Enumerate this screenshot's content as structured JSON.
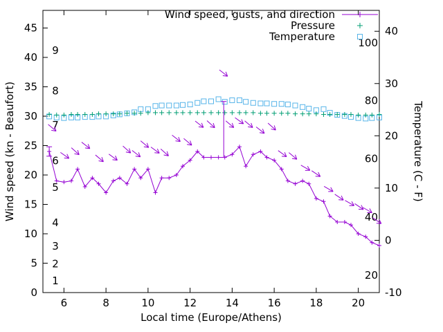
{
  "chart_data": {
    "type": "line",
    "title": "",
    "x_label": "Local time (Europe/Athens)",
    "x_axis": {
      "min": 5,
      "max": 21,
      "ticks": [
        6,
        8,
        10,
        12,
        14,
        16,
        18,
        20
      ]
    },
    "y_left": {
      "label": "Wind speed (kn - Beaufort)",
      "min": 0,
      "max": 48,
      "ticks": [
        0,
        5,
        10,
        15,
        20,
        25,
        30,
        35,
        40,
        45
      ],
      "beaufort_labels": [
        {
          "label": "1",
          "kn": 2.0
        },
        {
          "label": "2",
          "kn": 4.9
        },
        {
          "label": "3",
          "kn": 7.9
        },
        {
          "label": "4",
          "kn": 11.9
        },
        {
          "label": "5",
          "kn": 17.9
        },
        {
          "label": "6",
          "kn": 22.4
        },
        {
          "label": "7",
          "kn": 28.5
        },
        {
          "label": "8",
          "kn": 34.3
        },
        {
          "label": "9",
          "kn": 41.2
        }
      ]
    },
    "y_right": {
      "label": "Temperature (C - F)",
      "min": -10,
      "max": 44,
      "ticks": [
        -10,
        0,
        10,
        20,
        30,
        40
      ],
      "fahrenheit_labels": [
        {
          "label": "20",
          "c": -6.7
        },
        {
          "label": "40",
          "c": 4.4
        },
        {
          "label": "60",
          "c": 15.6
        },
        {
          "label": "80",
          "c": 26.7
        },
        {
          "label": "100",
          "c": 37.8
        }
      ]
    },
    "grid": false,
    "legend_position": "top-right-inside",
    "x": [
      5.3,
      5.65,
      6.0,
      6.35,
      6.65,
      7.0,
      7.35,
      7.65,
      8.0,
      8.35,
      8.65,
      9.0,
      9.35,
      9.65,
      10.0,
      10.35,
      10.65,
      11.0,
      11.35,
      11.65,
      12.0,
      12.35,
      12.65,
      13.0,
      13.35,
      13.65,
      14.0,
      14.35,
      14.65,
      15.0,
      15.35,
      15.65,
      16.0,
      16.35,
      16.65,
      17.0,
      17.35,
      17.65,
      18.0,
      18.35,
      18.65,
      19.0,
      19.35,
      19.65,
      20.0,
      20.35,
      20.65,
      21.0
    ],
    "series": {
      "wind": {
        "name": "Wind speed, gusts, and direction",
        "color": "#9400d3",
        "marker": "plus-line",
        "y_kn": [
          24,
          19,
          18.8,
          19,
          21,
          18,
          19.5,
          18.5,
          17,
          19,
          19.5,
          18.5,
          21,
          19.5,
          21,
          17,
          19.5,
          19.5,
          20,
          21.5,
          22.5,
          24,
          23,
          23,
          23,
          23,
          23.5,
          24.8,
          21.5,
          23.5,
          24,
          23,
          22.5,
          21,
          19,
          18.5,
          19,
          18.5,
          16,
          15.5,
          13,
          12,
          12,
          11.5,
          10,
          9.5,
          8.5,
          8
        ]
      },
      "gusts": [
        {
          "x": 5.3,
          "lo": 23.2,
          "hi": 24.8
        },
        {
          "x": 13.6,
          "lo": 23.0,
          "hi": 32.5
        }
      ],
      "arrows": {
        "color": "#9400d3",
        "items": [
          {
            "x": 5.45,
            "kn": 28.0,
            "deg": 40
          },
          {
            "x": 6.05,
            "kn": 23.3,
            "deg": 35
          },
          {
            "x": 6.55,
            "kn": 24.0,
            "deg": 42
          },
          {
            "x": 7.05,
            "kn": 25.0,
            "deg": 38
          },
          {
            "x": 7.7,
            "kn": 22.8,
            "deg": 40
          },
          {
            "x": 8.35,
            "kn": 23.0,
            "deg": 36
          },
          {
            "x": 9.0,
            "kn": 24.3,
            "deg": 42
          },
          {
            "x": 9.45,
            "kn": 23.6,
            "deg": 38
          },
          {
            "x": 9.85,
            "kn": 25.2,
            "deg": 40
          },
          {
            "x": 10.35,
            "kn": 24.2,
            "deg": 36
          },
          {
            "x": 10.8,
            "kn": 23.8,
            "deg": 42
          },
          {
            "x": 11.35,
            "kn": 26.2,
            "deg": 38
          },
          {
            "x": 11.9,
            "kn": 25.6,
            "deg": 40
          },
          {
            "x": 12.45,
            "kn": 28.6,
            "deg": 38
          },
          {
            "x": 13.0,
            "kn": 28.6,
            "deg": 42
          },
          {
            "x": 13.6,
            "kn": 37.3,
            "deg": 38
          },
          {
            "x": 13.9,
            "kn": 28.6,
            "deg": 40
          },
          {
            "x": 14.35,
            "kn": 29.2,
            "deg": 36
          },
          {
            "x": 14.8,
            "kn": 28.6,
            "deg": 40
          },
          {
            "x": 15.35,
            "kn": 27.6,
            "deg": 38
          },
          {
            "x": 15.9,
            "kn": 28.2,
            "deg": 42
          },
          {
            "x": 16.4,
            "kn": 23.6,
            "deg": 36
          },
          {
            "x": 16.9,
            "kn": 23.2,
            "deg": 40
          },
          {
            "x": 17.5,
            "kn": 21.2,
            "deg": 30
          },
          {
            "x": 18.0,
            "kn": 20.2,
            "deg": 34
          },
          {
            "x": 18.6,
            "kn": 17.6,
            "deg": 30
          },
          {
            "x": 19.1,
            "kn": 16.2,
            "deg": 34
          },
          {
            "x": 19.6,
            "kn": 15.2,
            "deg": 30
          },
          {
            "x": 20.05,
            "kn": 14.6,
            "deg": 34
          },
          {
            "x": 20.45,
            "kn": 14.0,
            "deg": 30
          },
          {
            "x": 20.9,
            "kn": 12.2,
            "deg": 34
          }
        ]
      },
      "pressure": {
        "name": "Pressure",
        "color": "#009e73",
        "marker": "plus",
        "y_kn": [
          30.3,
          30.2,
          30.2,
          30.3,
          30.3,
          30.3,
          30.3,
          30.4,
          30.4,
          30.4,
          30.4,
          30.5,
          30.5,
          30.5,
          30.6,
          30.6,
          30.6,
          30.6,
          30.6,
          30.6,
          30.6,
          30.6,
          30.6,
          30.6,
          30.6,
          30.6,
          30.6,
          30.6,
          30.6,
          30.6,
          30.5,
          30.5,
          30.5,
          30.5,
          30.5,
          30.4,
          30.4,
          30.4,
          30.4,
          30.3,
          30.3,
          30.3,
          30.3,
          30.3,
          30.2,
          30.2,
          30.2,
          30.3
        ]
      },
      "temperature": {
        "name": "Temperature",
        "color": "#56b4e9",
        "marker": "square",
        "y_c": [
          23.7,
          23.5,
          23.4,
          23.5,
          23.5,
          23.6,
          23.6,
          23.7,
          23.7,
          23.9,
          24.1,
          24.3,
          24.5,
          25.1,
          25.1,
          25.7,
          25.8,
          25.8,
          25.8,
          25.9,
          26.0,
          26.3,
          26.6,
          26.6,
          27.0,
          26.5,
          26.8,
          26.8,
          26.5,
          26.3,
          26.2,
          26.2,
          26.1,
          26.1,
          26.0,
          25.8,
          25.5,
          25.2,
          24.9,
          25.1,
          24.4,
          24.0,
          23.8,
          23.6,
          23.4,
          23.3,
          23.4,
          23.5
        ]
      }
    }
  }
}
